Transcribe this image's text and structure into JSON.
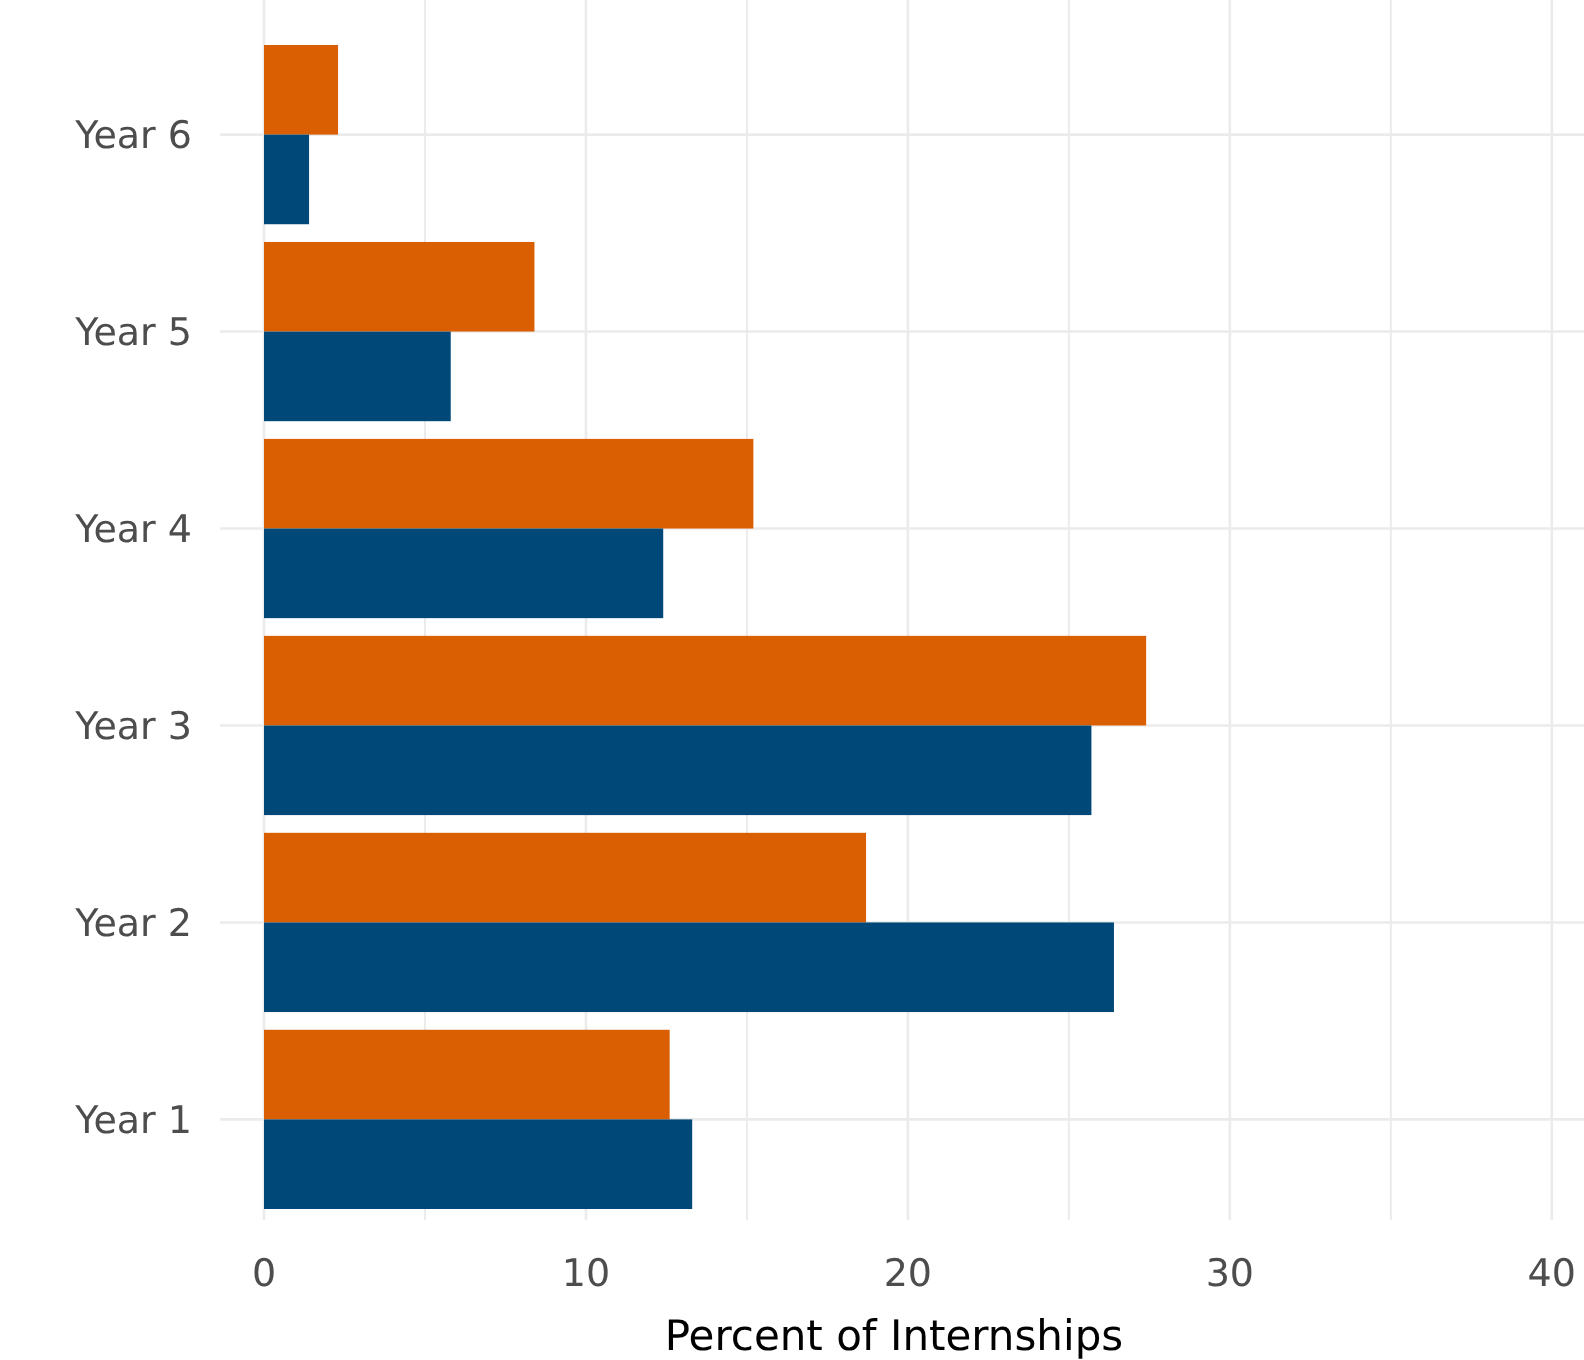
{
  "chart_data": {
    "type": "bar",
    "orientation": "horizontal",
    "categories": [
      "Year 6",
      "Year 5",
      "Year 4",
      "Year 3",
      "Year 2",
      "Year 1"
    ],
    "series": [
      {
        "color": "#d95f02",
        "values": [
          2.3,
          8.4,
          15.2,
          27.4,
          18.7,
          12.6
        ]
      },
      {
        "color": "#004877",
        "values": [
          1.4,
          5.8,
          12.4,
          25.7,
          26.4,
          13.3
        ]
      }
    ],
    "xlabel": "Percent of Internships",
    "xlim": [
      0,
      41
    ],
    "xticks": [
      0,
      {
        "value": 5,
        "label": null
      },
      10,
      {
        "value": 15,
        "label": null
      },
      20,
      {
        "value": 25,
        "label": null
      },
      30,
      {
        "value": 35,
        "label": null
      },
      40
    ],
    "grid": true
  }
}
